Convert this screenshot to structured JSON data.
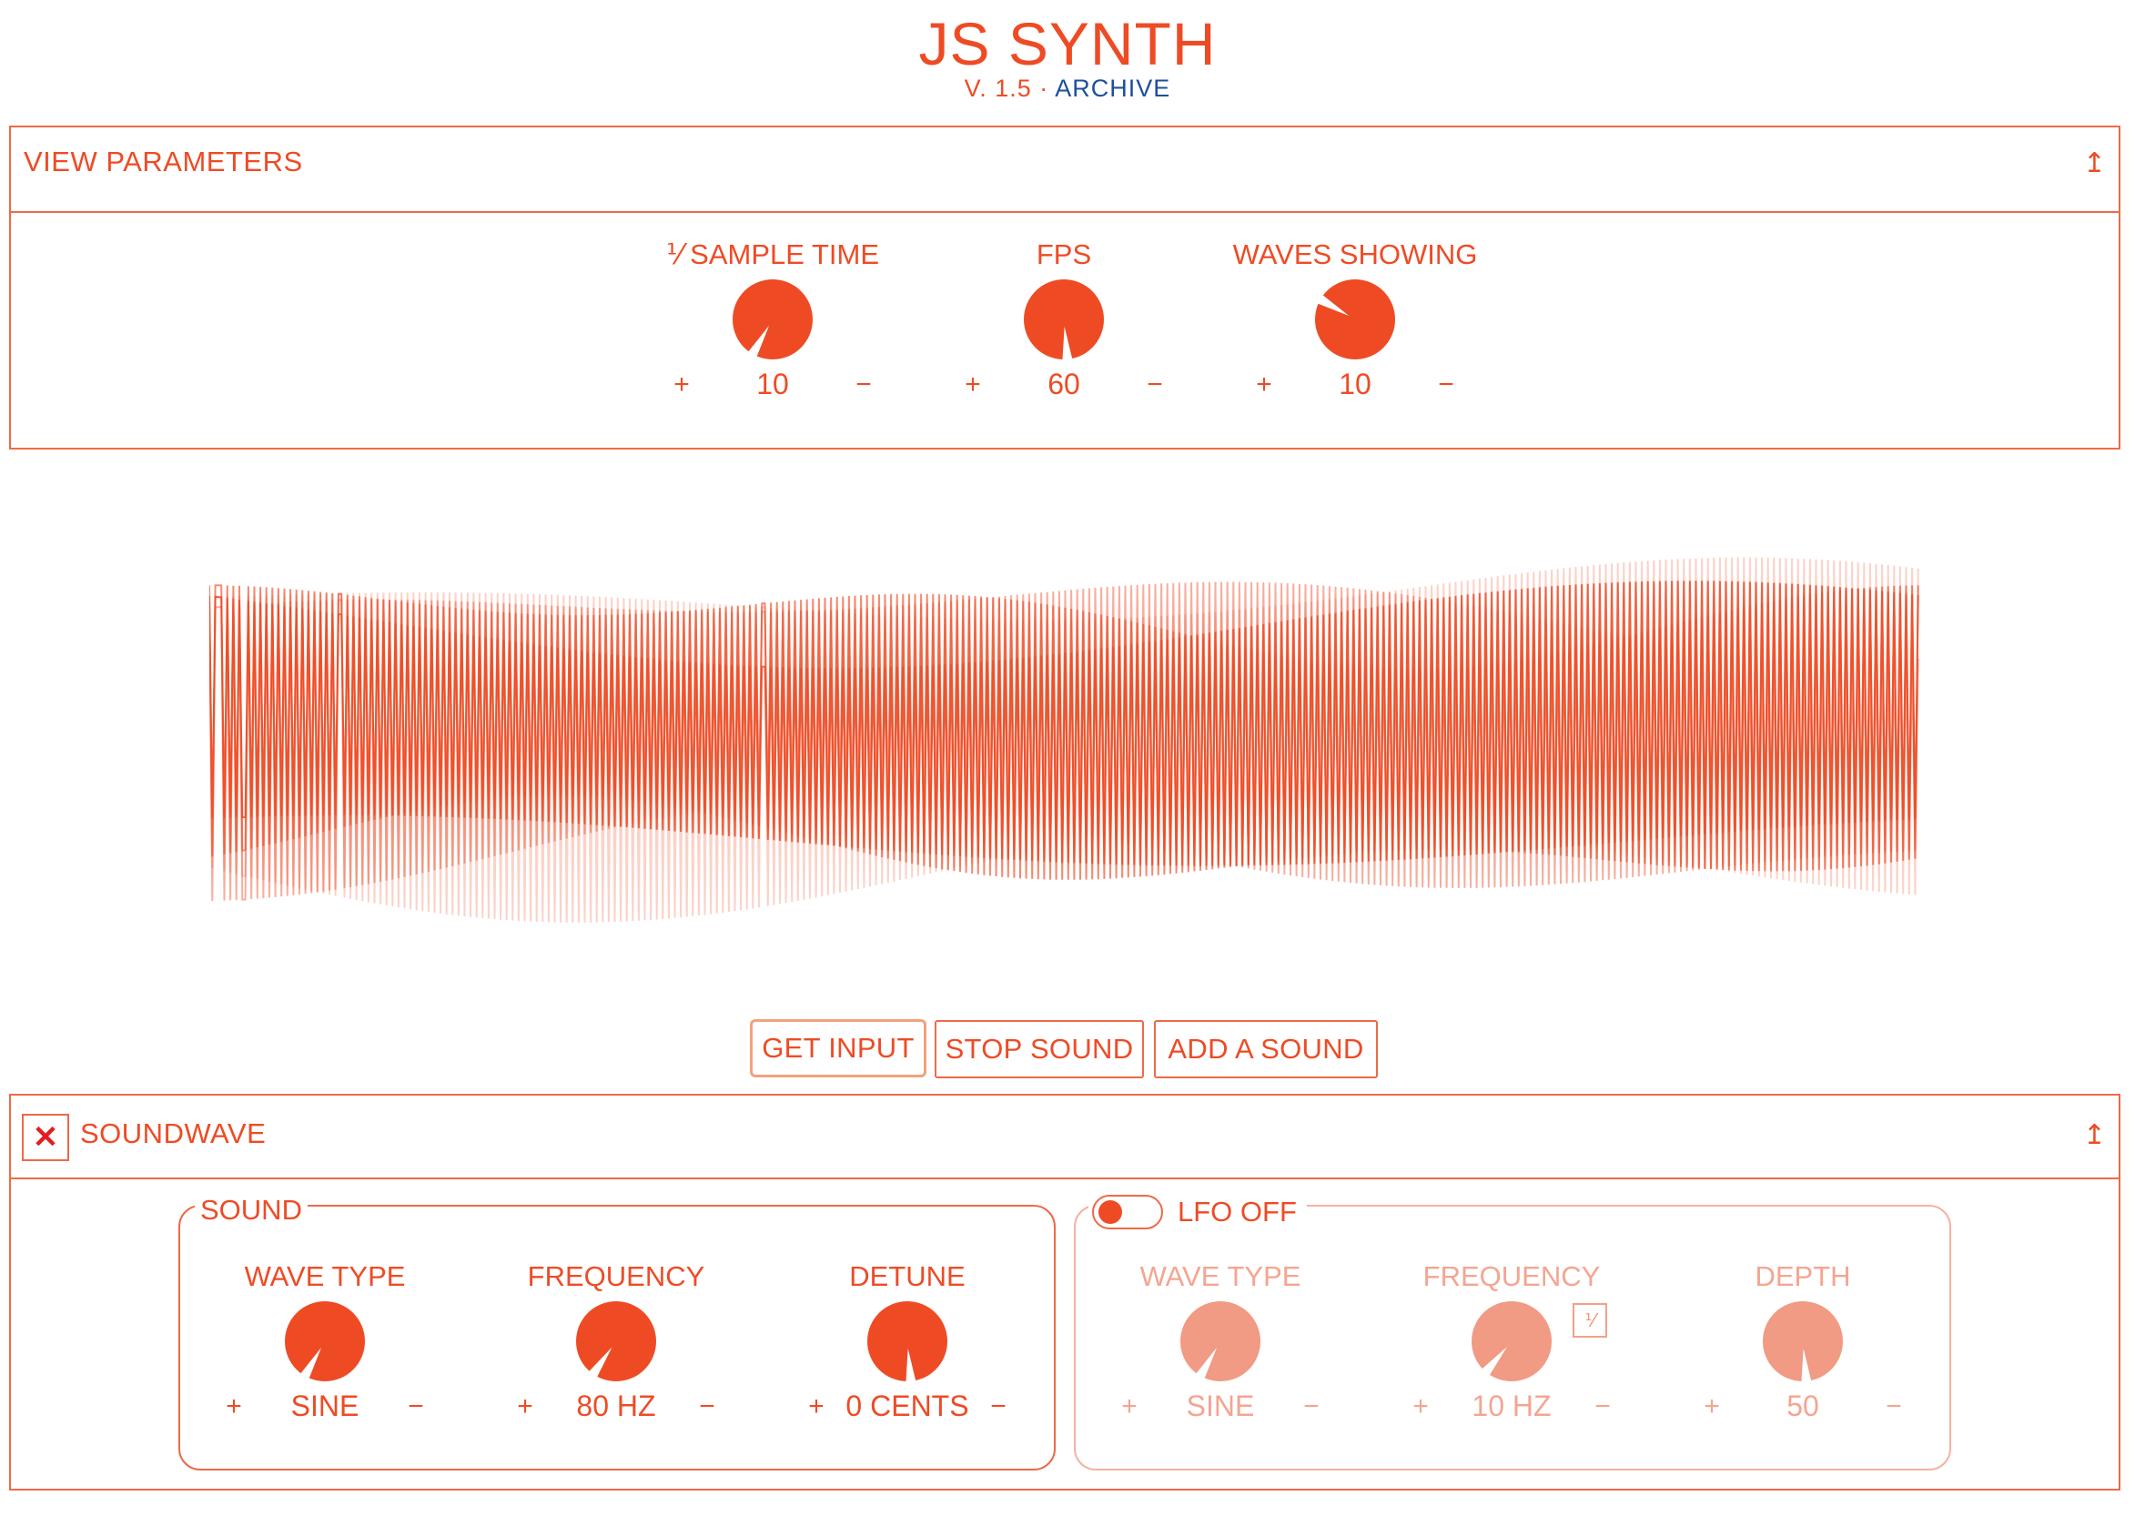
{
  "header": {
    "title": "JS SYNTH",
    "version": "V. 1.5",
    "separator": "·",
    "archive_link": "ARCHIVE"
  },
  "view_parameters": {
    "label": "VIEW PARAMETERS",
    "collapse_icon": "↥",
    "controls": [
      {
        "label": "⅟ SAMPLE TIME",
        "value": "10",
        "plus": "+",
        "minus": "−",
        "knob_angle_deg": 210
      },
      {
        "label": "FPS",
        "value": "60",
        "plus": "+",
        "minus": "−",
        "knob_angle_deg": 175
      },
      {
        "label": "WAVES SHOWING",
        "value": "10",
        "plus": "+",
        "minus": "−",
        "knob_angle_deg": 300
      }
    ]
  },
  "actions": {
    "get_input": "GET INPUT",
    "stop_sound": "STOP SOUND",
    "add_sound": "ADD A SOUND"
  },
  "soundwave": {
    "close_icon": "✕",
    "label": "SOUNDWAVE",
    "collapse_icon": "↥",
    "sound": {
      "legend": "SOUND",
      "controls": [
        {
          "label": "WAVE TYPE",
          "value": "SINE",
          "plus": "+",
          "minus": "−",
          "knob_angle_deg": 210
        },
        {
          "label": "FREQUENCY",
          "value": "80 HZ",
          "plus": "+",
          "minus": "−",
          "knob_angle_deg": 215
        },
        {
          "label": "DETUNE",
          "value": "0 CENTS",
          "plus": "+",
          "minus": "−",
          "knob_angle_deg": 175
        }
      ]
    },
    "lfo": {
      "legend": "LFO OFF",
      "sync_badge": "⅟",
      "controls": [
        {
          "label": "WAVE TYPE",
          "value": "SINE",
          "plus": "+",
          "minus": "−",
          "knob_angle_deg": 210
        },
        {
          "label": "FREQUENCY",
          "value": "10 HZ",
          "plus": "+",
          "minus": "−",
          "knob_angle_deg": 220
        },
        {
          "label": "DEPTH",
          "value": "50",
          "plus": "+",
          "minus": "−",
          "knob_angle_deg": 175
        }
      ]
    }
  },
  "colors": {
    "accent": "#ee4b25",
    "accent_dim": "#f19a84",
    "border": "#ee6a47",
    "archive_link": "#1e4f9c"
  }
}
